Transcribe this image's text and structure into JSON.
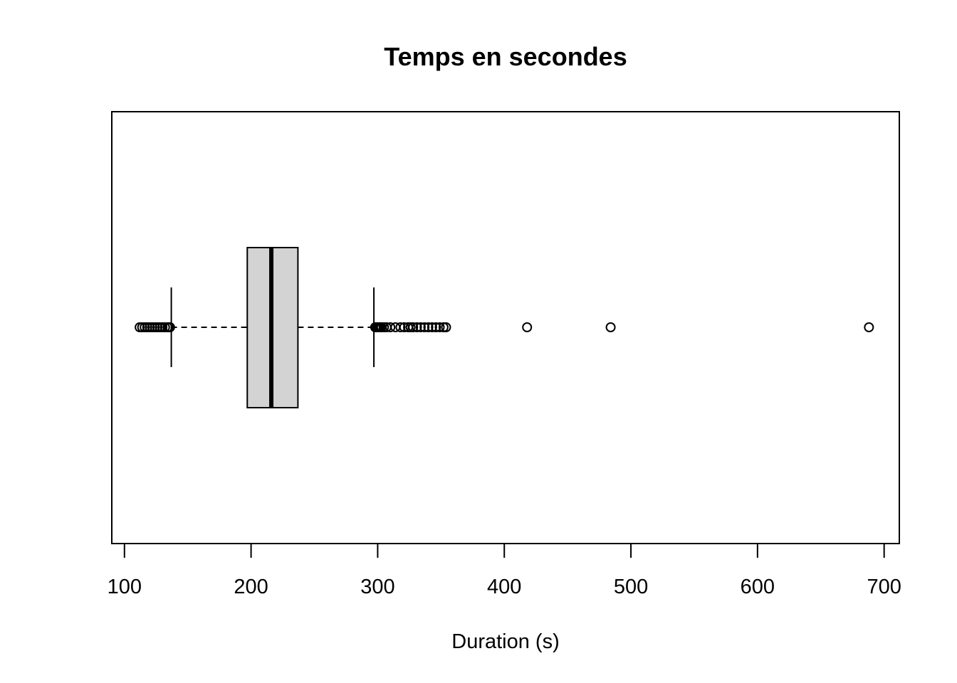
{
  "chart_data": {
    "type": "boxplot",
    "orientation": "horizontal",
    "title": "Temps en secondes",
    "xlabel": "Duration (s)",
    "ylabel": "",
    "xlim": [
      90,
      712
    ],
    "x_ticks": [
      100,
      200,
      300,
      400,
      500,
      600,
      700
    ],
    "x_tick_labels": [
      "100",
      "200",
      "300",
      "400",
      "500",
      "600",
      "700"
    ],
    "grid": false,
    "box": {
      "whisker_low": 137,
      "q1": 197,
      "median": 216,
      "q3": 237,
      "whisker_high": 297,
      "fill": "#d3d3d3"
    },
    "outliers": [
      112,
      114,
      116,
      118,
      120,
      122,
      124,
      126,
      128,
      130,
      132,
      134,
      135,
      136,
      298,
      299,
      300,
      301,
      302,
      303,
      305,
      307,
      310,
      314,
      318,
      321,
      324,
      326,
      328,
      331,
      334,
      337,
      340,
      343,
      346,
      349,
      352,
      354,
      418,
      484,
      688
    ]
  }
}
